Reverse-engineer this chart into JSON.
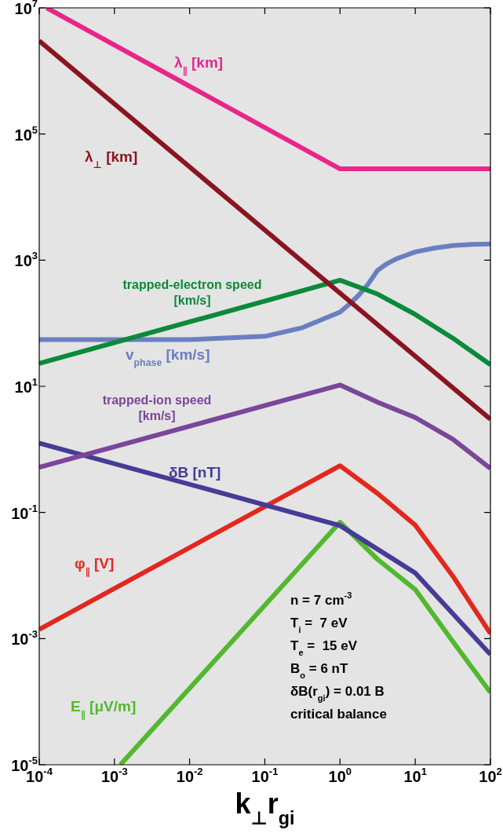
{
  "chart_data": {
    "type": "line",
    "xlabel": "k$_{⊥}$r$_{gi}$",
    "log": "xy",
    "xlim": [
      0.0001,
      100
    ],
    "ylim": [
      1e-05,
      10000000
    ],
    "xticks": [
      {
        "value": 0.0001,
        "label": "10$^{-4}$"
      },
      {
        "value": 0.001,
        "label": "10$^{-3}$"
      },
      {
        "value": 0.01,
        "label": "10$^{-2}$"
      },
      {
        "value": 0.1,
        "label": "10$^{-1}$"
      },
      {
        "value": 1,
        "label": "10$^{0}$"
      },
      {
        "value": 10,
        "label": "10$^{1}$"
      },
      {
        "value": 100,
        "label": "10$^{2}$"
      }
    ],
    "yticks": [
      {
        "value": 1e-05,
        "label": "10$^{-5}$"
      },
      {
        "value": 0.001,
        "label": "10$^{-3}$"
      },
      {
        "value": 0.1,
        "label": "10$^{-1}$"
      },
      {
        "value": 10,
        "label": "10$^{1}$"
      },
      {
        "value": 1000,
        "label": "10$^{3}$"
      },
      {
        "value": 100000,
        "label": "10$^{5}$"
      },
      {
        "value": 10000000,
        "label": "10$^{7}$"
      }
    ],
    "series": [
      {
        "name": "λ$_{∥}$ [km]",
        "color": "#e8268a",
        "x": [
          0.000126,
          1,
          100
        ],
        "values": [
          10000000,
          28000,
          28000
        ]
      },
      {
        "name": "λ$_{⊥}$ [km]",
        "color": "#8b1420",
        "x": [
          0.0001,
          100
        ],
        "values": [
          3000000,
          3
        ]
      },
      {
        "name": "trapped-electron speed [km/s]",
        "color": "#0a8a3a",
        "x": [
          0.0001,
          1,
          3.16,
          10,
          31.6,
          100
        ],
        "values": [
          23,
          480,
          290,
          138,
          58,
          22
        ]
      },
      {
        "name": "v$_{phase}$ [km/s]",
        "color": "#6a7fc1",
        "x": [
          0.0001,
          0.01,
          0.1,
          0.316,
          1,
          1.33,
          1.78,
          2.37,
          3.16,
          4.22,
          5.62,
          10,
          17.8,
          31.6,
          56,
          100
        ],
        "values": [
          55,
          55,
          62,
          85,
          150,
          200,
          280,
          420,
          690,
          880,
          1050,
          1350,
          1550,
          1700,
          1780,
          1800
        ]
      },
      {
        "name": "trapped-ion speed [km/s]",
        "color": "#7a469a",
        "x": [
          0.0001,
          1,
          3.16,
          10,
          31.6,
          100
        ],
        "values": [
          0.52,
          10.5,
          5.6,
          3.2,
          1.45,
          0.5
        ]
      },
      {
        "name": "δB [nT]",
        "color": "#463c96",
        "x": [
          0.0001,
          1,
          10,
          100
        ],
        "values": [
          1.26,
          0.062,
          0.011,
          0.00056
        ]
      },
      {
        "name": "φ$_{∥}$ [V]",
        "color": "#e2281e",
        "x": [
          0.0001,
          1,
          3.16,
          10,
          31.6,
          100
        ],
        "values": [
          0.0014,
          0.55,
          0.2,
          0.063,
          0.0098,
          0.0012
        ]
      },
      {
        "name": "E$_{∥}$ [μV/m]",
        "color": "#52b82e",
        "x": [
          0.0012,
          1,
          3.16,
          10,
          31.6,
          100
        ],
        "values": [
          1e-05,
          0.07,
          0.018,
          0.006,
          0.0009,
          0.00014
        ]
      }
    ],
    "annotations": [
      "n = 7 cm$^{-3}$",
      "T$_{i}$ =  7 eV",
      "T$_{e}$ =  15 eV",
      "B$_{o}$ = 6 nT",
      "δB(r$_{gi}$) = 0.01 B",
      "critical balance"
    ]
  }
}
